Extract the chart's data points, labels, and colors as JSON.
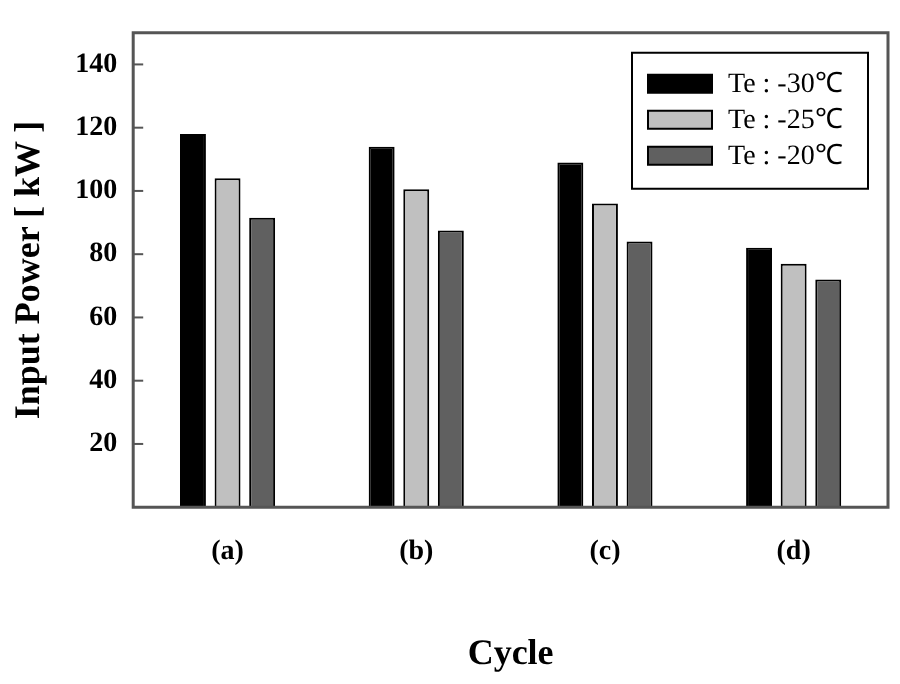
{
  "chart_data": {
    "type": "bar",
    "xlabel": "Cycle",
    "ylabel": "Input Power [ kW ]",
    "categories": [
      "(a)",
      "(b)",
      "(c)",
      "(d)"
    ],
    "series": [
      {
        "name": "Te : -30℃",
        "color": "#000000",
        "values": [
          118,
          114,
          109,
          82
        ]
      },
      {
        "name": "Te : -25℃",
        "color": "#c0c0c0",
        "values": [
          104,
          100.5,
          96,
          77
        ]
      },
      {
        "name": "Te : -20℃",
        "color": "#606060",
        "values": [
          91.5,
          87.5,
          84,
          72
        ]
      }
    ],
    "ylim": [
      0,
      150
    ],
    "yticks": [
      20,
      40,
      60,
      80,
      100,
      120,
      140
    ],
    "grid": false,
    "legend": "top right"
  }
}
